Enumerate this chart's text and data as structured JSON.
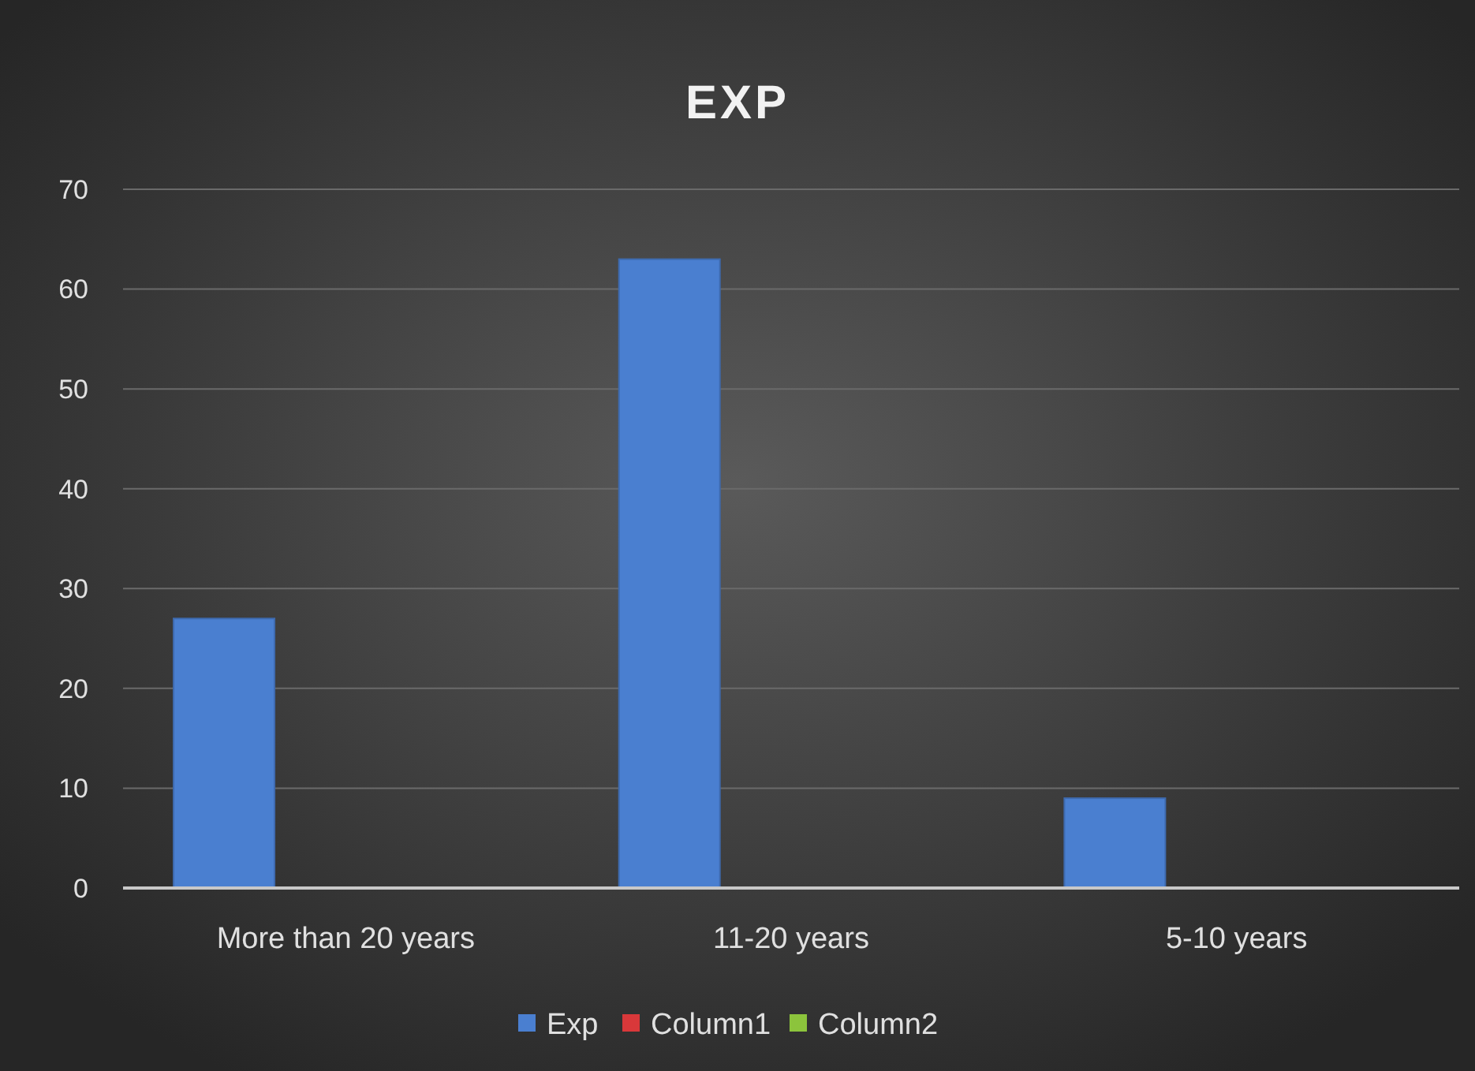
{
  "chart_data": {
    "type": "bar",
    "title": "EXP",
    "categories": [
      "More than 20 years",
      "11-20 years",
      "5-10 years"
    ],
    "series": [
      {
        "name": "Exp",
        "color": "#4a7fd0",
        "values": [
          27,
          63,
          9
        ]
      },
      {
        "name": "Column1",
        "color": "#d9383a",
        "values": [
          null,
          null,
          null
        ]
      },
      {
        "name": "Column2",
        "color": "#8cc43c",
        "values": [
          null,
          null,
          null
        ]
      }
    ],
    "ylim": [
      0,
      70
    ],
    "yticks": [
      0,
      10,
      20,
      30,
      40,
      50,
      60,
      70
    ],
    "grid": "y",
    "legend": "bottom"
  }
}
